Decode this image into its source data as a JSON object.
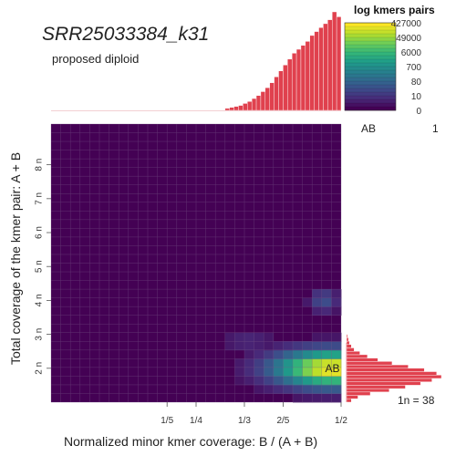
{
  "chart_data": {
    "type": "heatmap",
    "title": "SRR25033384_k31",
    "subtitle": "proposed diploid",
    "xlabel": "Normalized minor kmer coverage: B / (A + B)",
    "ylabel": "Total coverage of the kmer pair: A + B",
    "x_tick_labels": [
      "1/5",
      "1/4",
      "1/3",
      "2/5",
      "1/2"
    ],
    "x_tick_values": [
      0.2,
      0.25,
      0.3333,
      0.4,
      0.5
    ],
    "y_tick_labels": [
      "2 n",
      "3 n",
      "4 n",
      "5 n",
      "6 n",
      "7 n",
      "8 n"
    ],
    "y_tick_values": [
      2,
      3,
      4,
      5,
      6,
      7,
      8
    ],
    "xlim": [
      0,
      0.5
    ],
    "ylim_n": [
      1,
      9.2
    ],
    "legend": {
      "title": "log kmers pairs",
      "labels": [
        "427000",
        "49000",
        "6000",
        "700",
        "80",
        "10",
        "0"
      ]
    },
    "smudge_label": "AB",
    "smudge_annotation": {
      "label": "AB",
      "fraction": 1
    },
    "coverage_1n_label": "1n =  38",
    "coverage_1n": 38,
    "hotspots": [
      {
        "x": 0.485,
        "y_n": 2.0,
        "intensity": 1.0
      },
      {
        "x": 0.47,
        "y_n": 4.0,
        "intensity": 0.25
      },
      {
        "x": 0.34,
        "y_n": 2.8,
        "intensity": 0.12
      }
    ],
    "top_histogram": {
      "x_from": 0.3,
      "x_to": 0.5,
      "relative_heights": [
        0.02,
        0.03,
        0.04,
        0.05,
        0.07,
        0.09,
        0.12,
        0.15,
        0.19,
        0.23,
        0.28,
        0.34,
        0.4,
        0.46,
        0.52,
        0.58,
        0.62,
        0.66,
        0.7,
        0.76,
        0.8,
        0.84,
        0.88,
        0.92,
        1.0,
        0.95
      ]
    },
    "right_histogram": {
      "y_from_n": 1.0,
      "y_to_n": 3.0,
      "relative_widths": [
        0.05,
        0.12,
        0.25,
        0.45,
        0.62,
        0.78,
        0.9,
        1.0,
        0.95,
        0.82,
        0.65,
        0.48,
        0.33,
        0.22,
        0.14,
        0.08,
        0.05,
        0.03,
        0.02,
        0.01
      ]
    },
    "colors": {
      "background": "#440154",
      "grid": "#7a5a8a",
      "histogram": "#e0414e",
      "viridis": [
        "#440154",
        "#482878",
        "#3e4989",
        "#31688e",
        "#26828e",
        "#1f9e89",
        "#35b779",
        "#6ece58",
        "#b5de2b",
        "#fde725"
      ]
    }
  }
}
